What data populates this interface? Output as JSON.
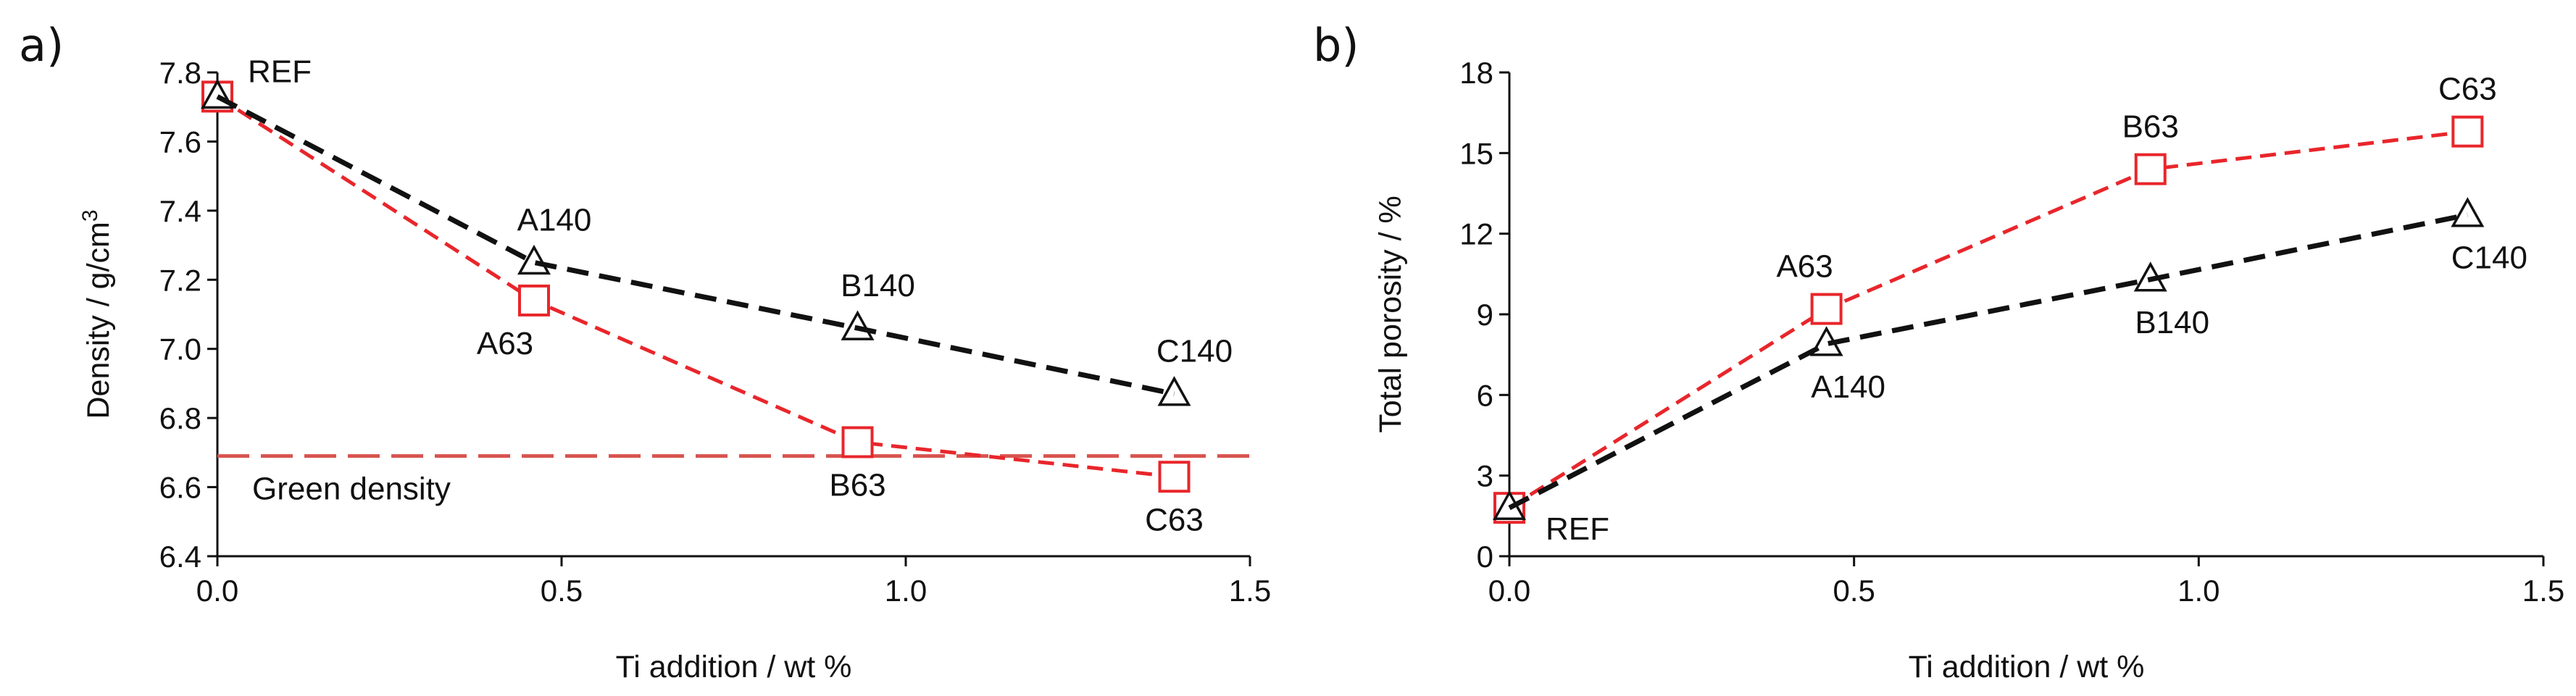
{
  "colors": {
    "series_a": "#e8262b",
    "series_b": "#111111",
    "reference_line": "#d9534f",
    "axis": "#111111"
  },
  "chart_data": [
    {
      "type": "line",
      "panel_label": "a)",
      "xlabel": "Ti addition / wt %",
      "ylabel_text": "Density / g/cm",
      "ylabel_superscript": "3",
      "xlim": [
        0,
        1.5
      ],
      "ylim": [
        6.4,
        7.8
      ],
      "xticks": [
        0,
        0.5,
        1.0,
        1.5
      ],
      "xtick_labels": [
        "0.0",
        "0.5",
        "1.0",
        "1.5"
      ],
      "yticks": [
        6.4,
        6.6,
        6.8,
        7.0,
        7.2,
        7.4,
        7.6,
        7.8
      ],
      "ytick_labels": [
        "6.4",
        "6.6",
        "6.8",
        "7.0",
        "7.2",
        "7.4",
        "7.6",
        "7.8"
      ],
      "series": [
        {
          "name": "63",
          "color_key": "series_a",
          "marker": "square",
          "x": [
            0,
            0.46,
            0.93,
            1.39
          ],
          "y": [
            7.73,
            7.14,
            6.73,
            6.63
          ],
          "labels": [
            "",
            "A63",
            "B63",
            "C63"
          ],
          "label_positions": [
            "",
            "below",
            "below",
            "below"
          ]
        },
        {
          "name": "140",
          "color_key": "series_b",
          "marker": "triangle",
          "x": [
            0,
            0.46,
            0.93,
            1.39
          ],
          "y": [
            7.73,
            7.25,
            7.06,
            6.87
          ],
          "labels": [
            "REF",
            "A140",
            "B140",
            "C140"
          ],
          "label_positions": [
            "right-top",
            "above",
            "above",
            "above"
          ]
        }
      ],
      "reference_line": {
        "y": 6.69,
        "label": "Green density",
        "color_key": "reference_line"
      }
    },
    {
      "type": "line",
      "panel_label": "b)",
      "xlabel": "Ti addition / wt %",
      "ylabel_text": "Total porosity / %",
      "ylabel_superscript": "",
      "xlim": [
        0,
        1.5
      ],
      "ylim": [
        0,
        18
      ],
      "xticks": [
        0,
        0.5,
        1.0,
        1.5
      ],
      "xtick_labels": [
        "0.0",
        "0.5",
        "1.0",
        "1.5"
      ],
      "yticks": [
        0,
        3,
        6,
        9,
        12,
        15,
        18
      ],
      "ytick_labels": [
        "0",
        "3",
        "6",
        "9",
        "12",
        "15",
        "18"
      ],
      "series": [
        {
          "name": "63",
          "color_key": "series_a",
          "marker": "square",
          "x": [
            0,
            0.46,
            0.93,
            1.39
          ],
          "y": [
            1.8,
            9.2,
            14.4,
            15.8
          ],
          "labels": [
            "",
            "A63",
            "B63",
            "C63"
          ],
          "label_positions": [
            "",
            "above",
            "above",
            "above"
          ]
        },
        {
          "name": "140",
          "color_key": "series_b",
          "marker": "triangle",
          "x": [
            0,
            0.46,
            0.93,
            1.39
          ],
          "y": [
            1.8,
            7.9,
            10.3,
            12.7
          ],
          "labels": [
            "REF",
            "A140",
            "B140",
            "C140"
          ],
          "label_positions": [
            "right-bottom",
            "below",
            "below",
            "below"
          ]
        }
      ]
    }
  ]
}
